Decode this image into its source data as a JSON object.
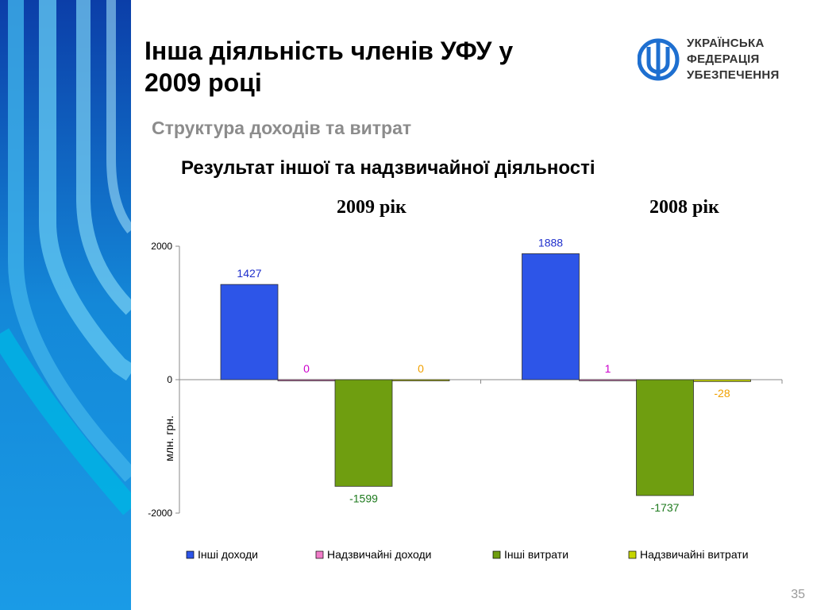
{
  "slide": {
    "title_line1": "Інша діяльність членів УФУ у",
    "title_line2": "2009 році",
    "subtitle": "Структура доходів та витрат",
    "section_title": "Результат іншої та надзвичайної діяльності",
    "page_number": "35"
  },
  "logo": {
    "line1": "УКРАЇНСЬКА",
    "line2": "ФЕДЕРАЦІЯ",
    "line3": "УБЕЗПЕЧЕННЯ"
  },
  "chart_data": {
    "type": "bar",
    "groups": [
      "2009 рік",
      "2008 рік"
    ],
    "ylabel": "млн. грн.",
    "ylim": [
      -2000,
      2000
    ],
    "yticks": [
      -2000,
      0,
      2000
    ],
    "grid": false,
    "legend_position": "bottom",
    "series": [
      {
        "name": "Інші доходи",
        "values": [
          1427,
          1888
        ],
        "labels": [
          "1427",
          "1888"
        ],
        "color": "#2d55e8",
        "label_color": "#1f2fcc"
      },
      {
        "name": "Надзвичайні доходи",
        "values": [
          0,
          1
        ],
        "labels": [
          "0",
          "1"
        ],
        "color": "#f07cc8",
        "label_color": "#cc00cc"
      },
      {
        "name": "Інші витрати",
        "values": [
          -1599,
          -1737
        ],
        "labels": [
          "-1599",
          "-1737"
        ],
        "color": "#6f9e10",
        "label_color": "#1e7a1e"
      },
      {
        "name": "Надзвичайні витрати",
        "values": [
          0,
          -28
        ],
        "labels": [
          "0",
          "-28"
        ],
        "color": "#c6d600",
        "label_color": "#f0a000"
      }
    ]
  }
}
